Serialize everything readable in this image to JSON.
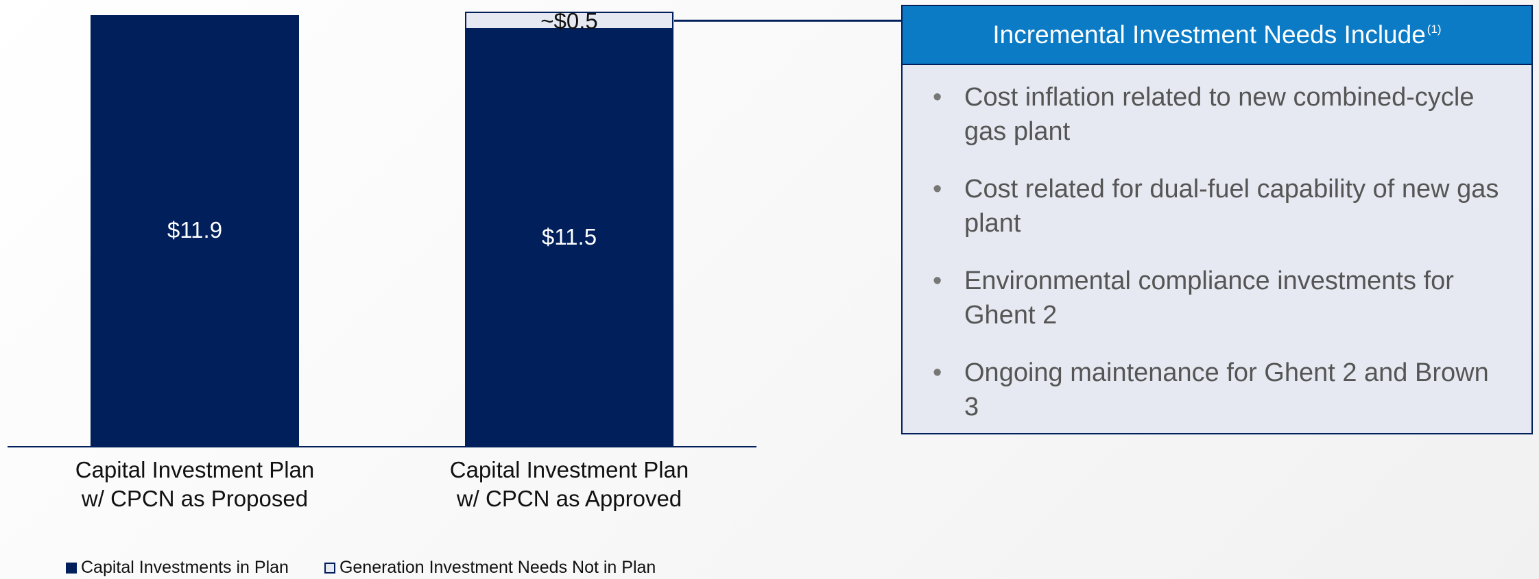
{
  "chart_data": {
    "type": "stacked_bar",
    "categories": [
      "Capital Investment Plan w/ CPCN as Proposed",
      "Capital Investment Plan w/ CPCN as Approved"
    ],
    "series": [
      {
        "name": "Capital Investments in Plan",
        "color": "#001f5b",
        "values": [
          11.9,
          11.5
        ],
        "value_labels": [
          "$11.9",
          "$11.5"
        ]
      },
      {
        "name": "Generation Investment Needs Not in Plan",
        "color": "#e6e9f1",
        "values": [
          null,
          0.5
        ],
        "value_labels": [
          null,
          "~$0.5"
        ]
      }
    ],
    "legend": "bottom"
  },
  "callout": {
    "title": "Incremental Investment Needs Include",
    "note_marker": "(1)",
    "items": [
      "Cost inflation related to new combined-cycle gas plant",
      "Cost related for dual-fuel capability of new gas plant",
      "Environmental compliance investments for Ghent 2",
      "Ongoing maintenance for Ghent 2 and Brown 3"
    ]
  }
}
